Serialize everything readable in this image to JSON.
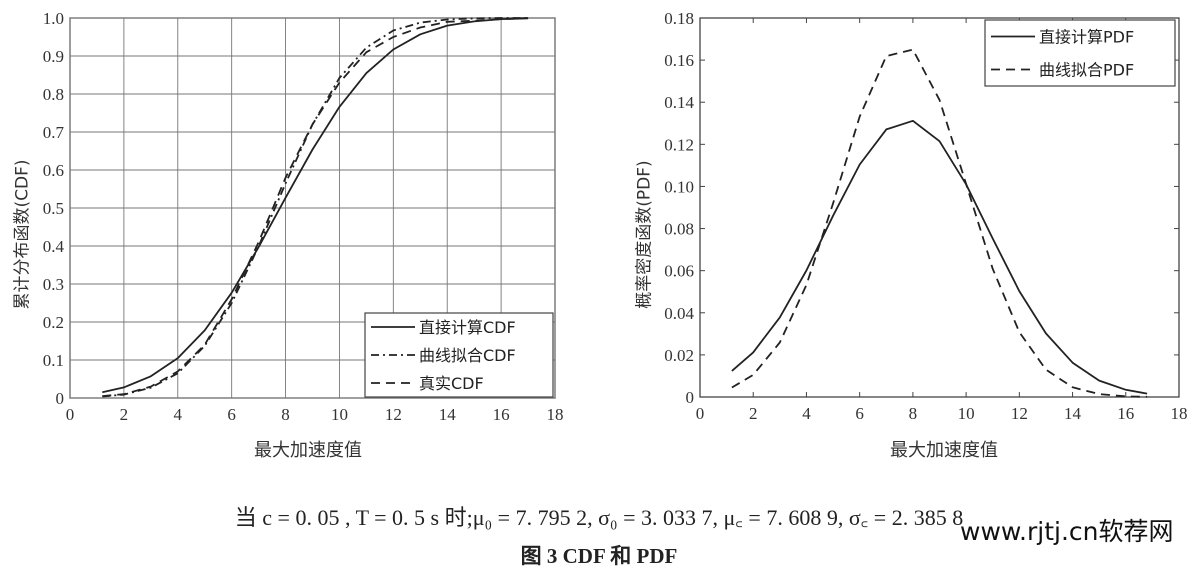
{
  "chart_data": [
    {
      "type": "line",
      "xlabel": "最大加速度值",
      "ylabel": "累计分布函数(CDF)",
      "xlim": [
        0,
        18
      ],
      "ylim": [
        0,
        1.0
      ],
      "xticks": [
        "0",
        "2",
        "4",
        "6",
        "8",
        "10",
        "12",
        "14",
        "16",
        "18"
      ],
      "yticks": [
        "0",
        "0.1",
        "0.2",
        "0.3",
        "0.4",
        "0.5",
        "0.6",
        "0.7",
        "0.8",
        "0.9",
        "1.0"
      ],
      "grid": true,
      "legend_position": "bottom-right",
      "series": [
        {
          "name": "直接计算CDF",
          "style": "solid",
          "x": [
            1.2,
            2,
            3,
            4,
            5,
            6,
            7,
            8,
            9,
            10,
            11,
            12,
            13,
            14,
            15,
            16,
            17
          ],
          "y": [
            0.015,
            0.028,
            0.057,
            0.105,
            0.178,
            0.277,
            0.397,
            0.527,
            0.654,
            0.766,
            0.855,
            0.917,
            0.957,
            0.98,
            0.991,
            0.997,
            0.999
          ]
        },
        {
          "name": "曲线拟合CDF",
          "style": "dashdot",
          "x": [
            1.2,
            2,
            3,
            4,
            5,
            6,
            7,
            8,
            9,
            10,
            11,
            12,
            13,
            14,
            15,
            16,
            17
          ],
          "y": [
            0.004,
            0.009,
            0.027,
            0.065,
            0.137,
            0.25,
            0.399,
            0.565,
            0.72,
            0.842,
            0.922,
            0.967,
            0.988,
            0.996,
            0.999,
            1.0,
            1.0
          ]
        },
        {
          "name": "真实CDF",
          "style": "dashed",
          "x": [
            1.2,
            2,
            3,
            4,
            5,
            6,
            7,
            8,
            9,
            10,
            11,
            12,
            13,
            14,
            15,
            16,
            17
          ],
          "y": [
            0.005,
            0.01,
            0.03,
            0.07,
            0.14,
            0.26,
            0.41,
            0.58,
            0.72,
            0.83,
            0.91,
            0.95,
            0.975,
            0.99,
            0.993,
            0.997,
            1.0
          ]
        }
      ]
    },
    {
      "type": "line",
      "xlabel": "最大加速度值",
      "ylabel": "概率密度函数(PDF)",
      "xlim": [
        0,
        18
      ],
      "ylim": [
        0,
        0.18
      ],
      "xticks": [
        "0",
        "2",
        "4",
        "6",
        "8",
        "10",
        "12",
        "14",
        "16",
        "18"
      ],
      "yticks": [
        "0",
        "0.02",
        "0.04",
        "0.06",
        "0.08",
        "0.10",
        "0.12",
        "0.14",
        "0.16",
        "0.18"
      ],
      "grid": false,
      "legend_position": "top-right",
      "series": [
        {
          "name": "直接计算PDF",
          "style": "solid",
          "x": [
            1.2,
            2,
            3,
            4,
            5,
            6,
            7,
            8,
            9,
            10,
            11,
            12,
            13,
            14,
            15,
            16,
            16.8
          ],
          "y": [
            0.0124,
            0.0212,
            0.0378,
            0.0601,
            0.0861,
            0.1104,
            0.1271,
            0.1312,
            0.1215,
            0.101,
            0.0753,
            0.0503,
            0.0302,
            0.0163,
            0.0078,
            0.0034,
            0.0016
          ]
        },
        {
          "name": "曲线拟合PDF",
          "style": "dashed",
          "x": [
            1.2,
            2,
            3,
            4,
            5,
            6,
            7,
            8,
            9,
            10,
            11,
            12,
            13,
            14,
            15,
            16,
            16.8
          ],
          "y": [
            0.0045,
            0.0105,
            0.0259,
            0.0532,
            0.092,
            0.1332,
            0.1619,
            0.165,
            0.1411,
            0.1012,
            0.0609,
            0.0308,
            0.013,
            0.0046,
            0.0014,
            0.0003,
            0.0001
          ]
        }
      ]
    }
  ],
  "caption": {
    "params": "当 c = 0. 05 , T = 0. 5  s 时;μ₀ = 7. 795 2, σ₀ = 3. 033 7, μ꜀ = 7. 608 9, σ꜀ = 2. 385 8",
    "title": "图 3    CDF 和 PDF"
  },
  "watermark": "www.rjtj.cn软荐网"
}
